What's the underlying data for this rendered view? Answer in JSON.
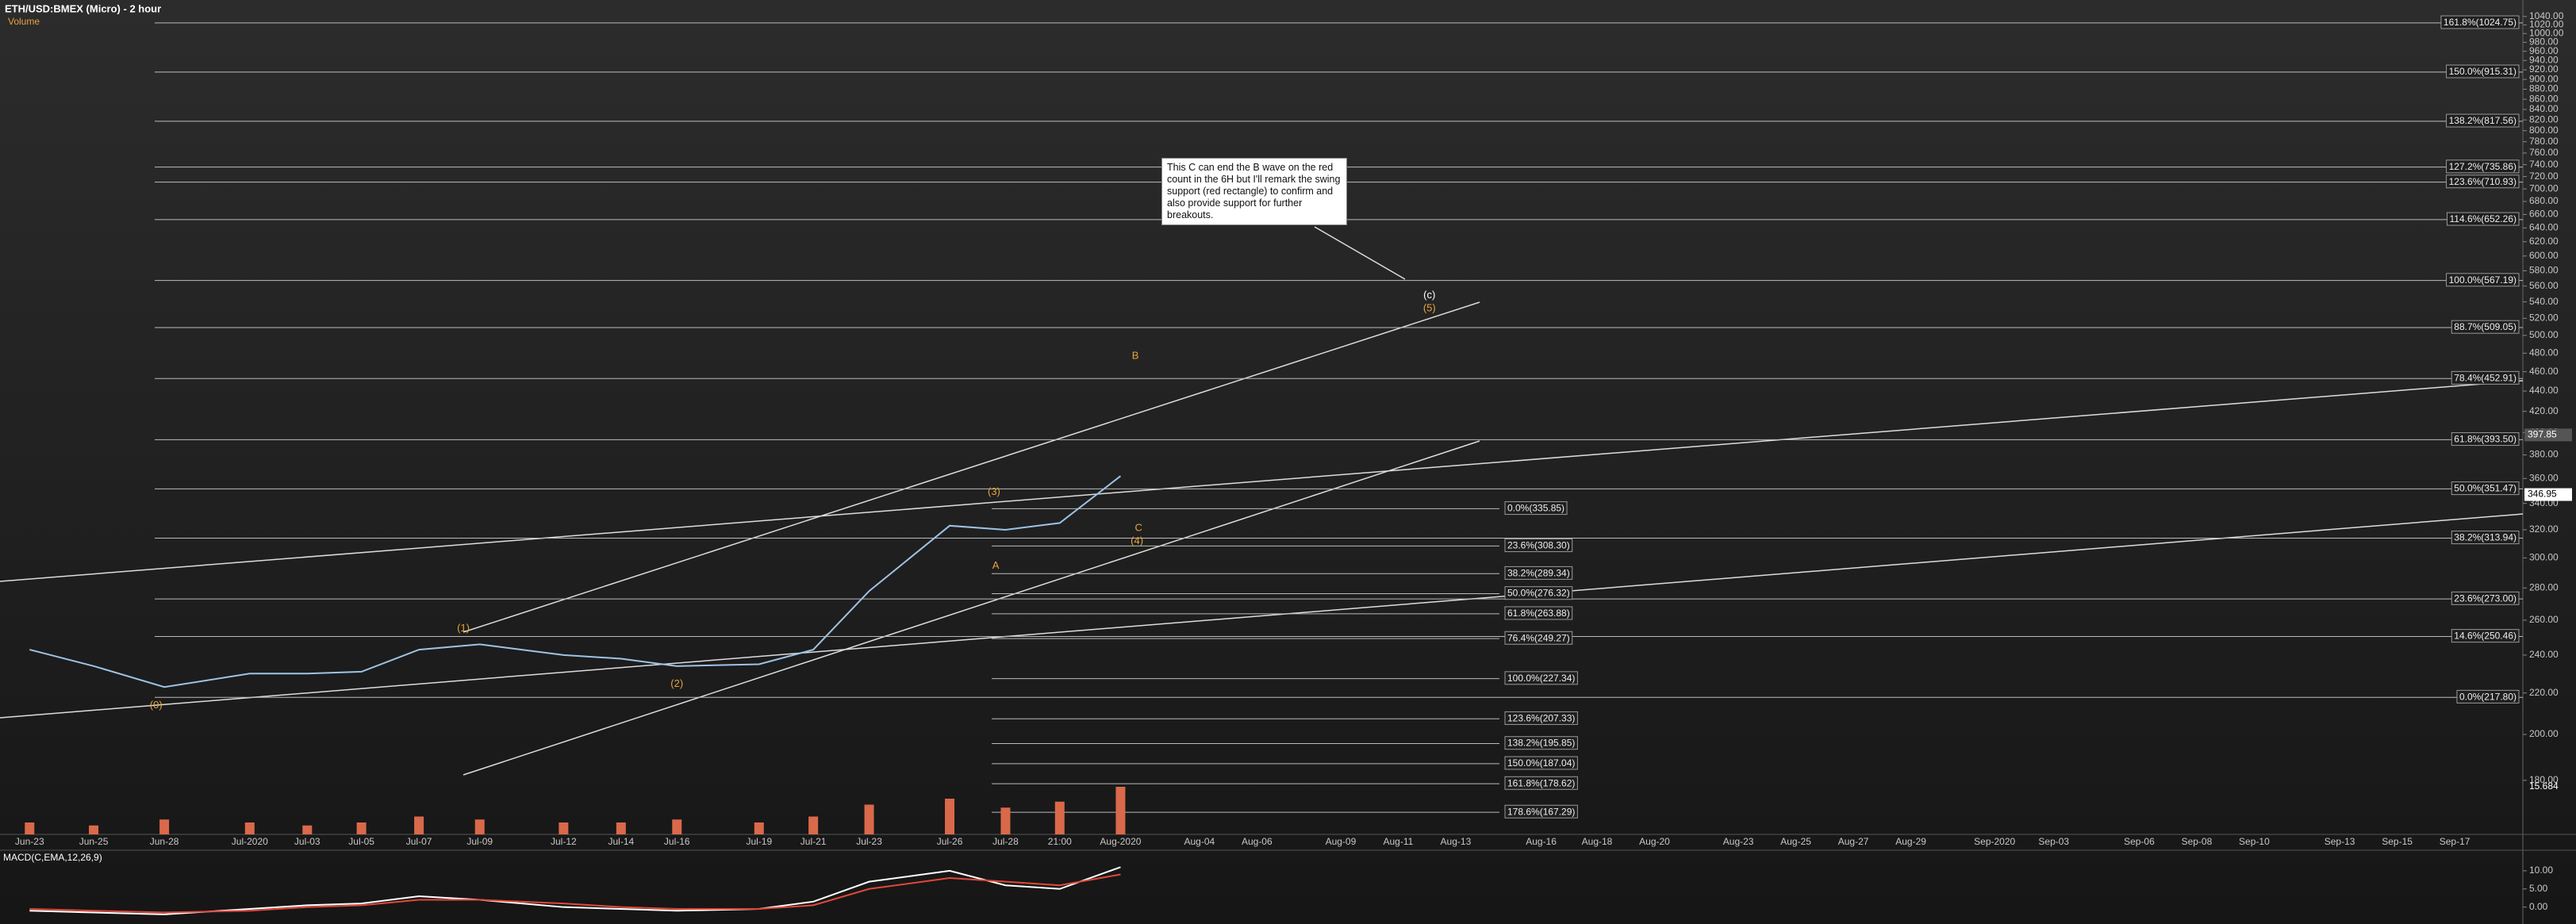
{
  "chart_data": {
    "type": "line",
    "title": "ETH/USD:BMEX (Micro) - 2 hour",
    "subtitle": "Volume",
    "categories": [
      "Jun-23",
      "Jun-25",
      "Jun-28",
      "Jul-2020",
      "Jul-03",
      "Jul-05",
      "Jul-07",
      "Jul-09",
      "Jul-12",
      "Jul-14",
      "Jul-16",
      "Jul-19",
      "Jul-21",
      "Jul-23",
      "Jul-26",
      "Jul-28",
      "21:00",
      "Aug-2020",
      "Aug-04",
      "Aug-06",
      "Aug-09",
      "Aug-11",
      "Aug-13",
      "Aug-16",
      "Aug-18",
      "Aug-20",
      "Aug-23",
      "Aug-25",
      "Aug-27",
      "Aug-29",
      "Sep-2020",
      "Sep-03",
      "Sep-06",
      "Sep-08",
      "Sep-10",
      "Sep-13",
      "Sep-15",
      "Sep-17"
    ],
    "values": [
      243,
      234,
      223,
      230,
      230,
      231,
      243,
      246,
      240,
      238,
      234,
      235,
      243,
      278,
      323,
      320,
      325,
      362,
      null,
      null,
      null,
      null,
      null,
      null,
      null,
      null,
      null,
      null,
      null,
      null,
      null,
      null,
      null,
      null,
      null,
      null,
      null,
      null
    ],
    "color": "#9ec3e6",
    "log_scale": true,
    "ylim": [
      159,
      1080
    ],
    "yticks": [
      {
        "value": 180,
        "label": "180.00"
      },
      {
        "value": 200,
        "label": "200.00"
      },
      {
        "value": 220,
        "label": "220.00"
      },
      {
        "value": 240,
        "label": "240.00"
      },
      {
        "value": 260,
        "label": "260.00"
      },
      {
        "value": 280,
        "label": "280.00"
      },
      {
        "value": 300,
        "label": "300.00"
      },
      {
        "value": 320,
        "label": "320.00"
      },
      {
        "value": 340,
        "label": "340.00"
      },
      {
        "value": 360,
        "label": "360.00"
      },
      {
        "value": 380,
        "label": "380.00"
      },
      {
        "value": 400,
        "label": "400.00"
      },
      {
        "value": 420,
        "label": "420.00"
      },
      {
        "value": 440,
        "label": "440.00"
      },
      {
        "value": 460,
        "label": "460.00"
      },
      {
        "value": 480,
        "label": "480.00"
      },
      {
        "value": 500,
        "label": "500.00"
      },
      {
        "value": 520,
        "label": "520.00"
      },
      {
        "value": 540,
        "label": "540.00"
      },
      {
        "value": 560,
        "label": "560.00"
      },
      {
        "value": 580,
        "label": "580.00"
      },
      {
        "value": 600,
        "label": "600.00"
      },
      {
        "value": 620,
        "label": "620.00"
      },
      {
        "value": 640,
        "label": "640.00"
      },
      {
        "value": 660,
        "label": "660.00"
      },
      {
        "value": 680,
        "label": "680.00"
      },
      {
        "value": 700,
        "label": "700.00"
      },
      {
        "value": 720,
        "label": "720.00"
      },
      {
        "value": 740,
        "label": "740.00"
      },
      {
        "value": 760,
        "label": "760.00"
      },
      {
        "value": 780,
        "label": "780.00"
      },
      {
        "value": 800,
        "label": "800.00"
      },
      {
        "value": 820,
        "label": "820.00"
      },
      {
        "value": 840,
        "label": "840.00"
      },
      {
        "value": 860,
        "label": "860.00"
      },
      {
        "value": 880,
        "label": "880.00"
      },
      {
        "value": 900,
        "label": "900.00"
      },
      {
        "value": 920,
        "label": "920.00"
      },
      {
        "value": 940,
        "label": "940.00"
      },
      {
        "value": 960,
        "label": "960.00"
      },
      {
        "value": 980,
        "label": "980.00"
      },
      {
        "value": 1000,
        "label": "1000.00"
      },
      {
        "value": 1020,
        "label": "1020.00"
      },
      {
        "value": 1040,
        "label": "1040.00"
      }
    ],
    "price_tags": [
      397.85,
      346.95
    ],
    "fib_right": [
      {
        "value": 1024.75,
        "label": "161.8%(1024.75)"
      },
      {
        "value": 915.31,
        "label": "150.0%(915.31)"
      },
      {
        "value": 817.56,
        "label": "138.2%(817.56)"
      },
      {
        "value": 735.86,
        "label": "127.2%(735.86)"
      },
      {
        "value": 710.93,
        "label": "123.6%(710.93)"
      },
      {
        "value": 652.26,
        "label": "114.6%(652.26)"
      },
      {
        "value": 567.19,
        "label": "100.0%(567.19)"
      },
      {
        "value": 509.05,
        "label": "88.7%(509.05)"
      },
      {
        "value": 452.91,
        "label": "78.4%(452.91)"
      },
      {
        "value": 393.5,
        "label": "61.8%(393.50)"
      },
      {
        "value": 351.47,
        "label": "50.0%(351.47)"
      },
      {
        "value": 313.94,
        "label": "38.2%(313.94)"
      },
      {
        "value": 273.0,
        "label": "23.6%(273.00)"
      },
      {
        "value": 250.46,
        "label": "14.6%(250.46)"
      },
      {
        "value": 217.8,
        "label": "0.0%(217.80)"
      }
    ],
    "fib_mid": [
      {
        "value": 335.85,
        "label": "0.0%(335.85)"
      },
      {
        "value": 308.3,
        "label": "23.6%(308.30)"
      },
      {
        "value": 289.34,
        "label": "38.2%(289.34)"
      },
      {
        "value": 276.32,
        "label": "50.0%(276.32)"
      },
      {
        "value": 263.88,
        "label": "61.8%(263.88)"
      },
      {
        "value": 249.27,
        "label": "76.4%(249.27)"
      },
      {
        "value": 227.34,
        "label": "100.0%(227.34)"
      },
      {
        "value": 207.33,
        "label": "123.6%(207.33)"
      },
      {
        "value": 195.85,
        "label": "138.2%(195.85)"
      },
      {
        "value": 187.04,
        "label": "150.0%(187.04)"
      },
      {
        "value": 178.62,
        "label": "161.8%(178.62)"
      },
      {
        "value": 167.29,
        "label": "178.6%(167.29)"
      }
    ],
    "waves": [
      "(0)",
      "(1)",
      "(2)",
      "(3)",
      "A",
      "B",
      "C",
      "(4)",
      "(c)",
      "(5)"
    ],
    "note": "This C can end the B wave on the red count in the 6H but I'll remark the swing support (red rectangle) to confirm and also provide support for further breakouts.",
    "volume": {
      "values": [
        4,
        3,
        5,
        4,
        3,
        4,
        6,
        5,
        4,
        4,
        5,
        4,
        6,
        10,
        12,
        9,
        11,
        16,
        null,
        null,
        null,
        null,
        null,
        null,
        null,
        null,
        null,
        null,
        null,
        null,
        null,
        null,
        null,
        null,
        null,
        null,
        null,
        null
      ],
      "ylim": [
        0,
        40
      ],
      "color": "#d9694a",
      "last": "15.684"
    },
    "macd": {
      "title": "MACD(C,EMA,12,26,9)",
      "macd": [
        -1,
        -1.5,
        -2,
        -0.5,
        0.5,
        1,
        3,
        2,
        0,
        -0.5,
        -1,
        -0.5,
        1.5,
        7,
        10,
        6,
        5,
        11,
        null,
        null,
        null,
        null,
        null,
        null,
        null,
        null,
        null,
        null,
        null,
        null,
        null,
        null,
        null,
        null,
        null,
        null,
        null,
        null
      ],
      "signal": [
        -0.5,
        -1,
        -1.5,
        -1,
        0,
        0.5,
        2,
        2,
        1,
        0,
        -0.5,
        -0.5,
        0.5,
        5,
        8,
        7,
        6,
        9,
        null,
        null,
        null,
        null,
        null,
        null,
        null,
        null,
        null,
        null,
        null,
        null,
        null,
        null,
        null,
        null,
        null,
        null,
        null,
        null
      ],
      "macd_color": "#ffffff",
      "signal_color": "#e0483a",
      "ylim": [
        -4,
        15
      ],
      "yticks": [
        {
          "value": 0,
          "label": "0.00"
        },
        {
          "value": 5,
          "label": "5.00"
        },
        {
          "value": 10,
          "label": "10.00"
        }
      ]
    }
  }
}
